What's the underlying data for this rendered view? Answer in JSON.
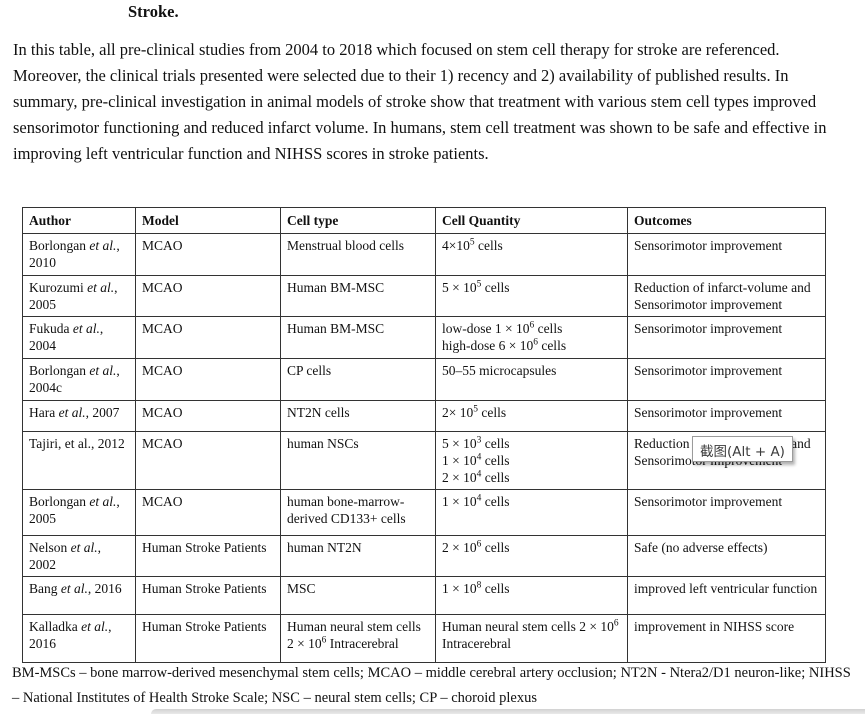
{
  "page": {
    "heading": "Stroke.",
    "intro": "In this table, all pre-clinical studies from 2004 to 2018 which focused on stem cell therapy for stroke are referenced. Moreover, the clinical trials presented were selected due to their 1) recency and 2) availability of published results. In summary, pre-clinical investigation in animal models of stroke show that treatment with various stem cell types improved sensorimotor functioning and reduced infarct volume. In humans, stem cell treatment was shown to be safe and effective in improving left ventricular function and NIHSS scores in stroke patients.",
    "footnote": "BM-MSCs – bone marrow-derived mesenchymal stem cells; MCAO – middle cerebral artery occlusion; NT2N - Ntera2/D1 neuron-like; NIHSS – National Institutes of Health Stroke Scale; NSC – neural stem cells; CP – choroid plexus"
  },
  "table": {
    "headers": [
      "Author",
      "Model",
      "Cell type",
      "Cell Quantity",
      "Outcomes"
    ],
    "rows": [
      {
        "author": "Borlongan *et al.*, 2010",
        "model": "MCAO",
        "cell_type": "Menstrual blood cells",
        "quantity": "4×10^5 cells",
        "outcomes": "Sensorimotor improvement"
      },
      {
        "author": "Kurozumi *et al.*, 2005",
        "model": "MCAO",
        "cell_type": "Human BM-MSC",
        "quantity": "5 × 10^5 cells",
        "outcomes": "Reduction of infarct-volume and Sensorimotor improvement"
      },
      {
        "author": "Fukuda *et al.*, 2004",
        "model": "MCAO",
        "cell_type": "Human BM-MSC",
        "quantity": [
          "low-dose 1 × 10^6 cells",
          "high-dose 6 × 10^6 cells"
        ],
        "outcomes": "Sensorimotor improvement"
      },
      {
        "author": "Borlongan *et al.*, 2004c",
        "model": "MCAO",
        "cell_type": "CP cells",
        "quantity": "50–55 microcapsules",
        "outcomes": "Sensorimotor improvement"
      },
      {
        "author": "Hara *et al.*, 2007",
        "model": "MCAO",
        "cell_type": "NT2N cells",
        "quantity": "2× 10^5 cells",
        "outcomes": "Sensorimotor improvement"
      },
      {
        "author": "Tajiri, et al., 2012",
        "model": "MCAO",
        "cell_type": "human NSCs",
        "quantity": [
          "5 × 10^3 cells",
          "1 × 10^4 cells",
          "2 × 10^4 cells"
        ],
        "outcomes": "Reduction of infarct-volume and Sensorimotor improvement"
      },
      {
        "author": "Borlongan *et al.*, 2005",
        "model": "MCAO",
        "cell_type": "human bone-marrow-derived CD133+ cells",
        "quantity": "1 × 10^4 cells",
        "outcomes": "Sensorimotor improvement"
      },
      {
        "author": "Nelson *et al.*, 2002",
        "model": "Human Stroke Patients",
        "cell_type": "human NT2N",
        "quantity": "2 × 10^6 cells",
        "outcomes": "Safe (no adverse effects)"
      },
      {
        "author": "Bang *et al.*, 2016",
        "model": "Human Stroke Patients",
        "cell_type": "MSC",
        "quantity": "1 × 10^8 cells",
        "outcomes": "improved left ventricular function"
      },
      {
        "author": "Kalladka *et al.*, 2016",
        "model": "Human Stroke Patients",
        "cell_type": "Human neural stem cells 2 × 10^6 Intracerebral",
        "quantity": "Human neural stem cells 2 × 10^6 Intracerebral",
        "outcomes": "improvement in NIHSS score"
      }
    ]
  },
  "tooltip": {
    "label": "截图(Alt + A)"
  },
  "colors": {
    "text": "#111111",
    "table_border": "#333333",
    "tooltip_border": "#9b9b9b",
    "overlay_bar": "#d9d9d9"
  }
}
